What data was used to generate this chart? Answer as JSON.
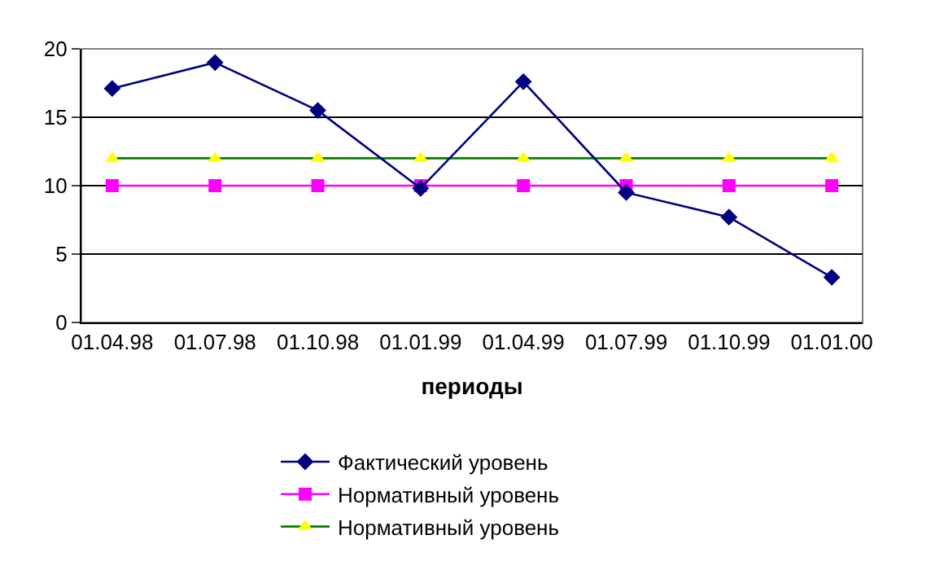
{
  "chart_data": {
    "type": "line",
    "xlabel": "периоды",
    "categories": [
      "01.04.98",
      "01.07.98",
      "01.10.98",
      "01.01.99",
      "01.04.99",
      "01.07.99",
      "01.10.99",
      "01.01.00"
    ],
    "series": [
      {
        "name": "Фактический уровень",
        "color": "#000080",
        "marker": "diamond",
        "values": [
          17.1,
          19,
          15.5,
          9.8,
          17.6,
          9.5,
          7.7,
          3.3
        ]
      },
      {
        "name": "Нормативный уровень",
        "color": "#ff00ff",
        "marker": "square",
        "values": [
          10,
          10,
          10,
          10,
          10,
          10,
          10,
          10
        ]
      },
      {
        "name": "Нормативный уровень",
        "color": "#008000",
        "colors": [
          "#ffff00",
          "#ffff00",
          "#ffff00",
          "#ffff00",
          "#ffff00",
          "#ffff00",
          "#ffff00",
          "#ffff00"
        ],
        "marker": "triangle",
        "values": [
          12,
          12,
          12,
          12,
          12,
          12,
          12,
          12
        ]
      }
    ],
    "ylim": [
      0,
      20
    ],
    "yticks": [
      0,
      5,
      10,
      15,
      20
    ],
    "grid": "y",
    "legend": "bottom",
    "line_style": "solid"
  }
}
